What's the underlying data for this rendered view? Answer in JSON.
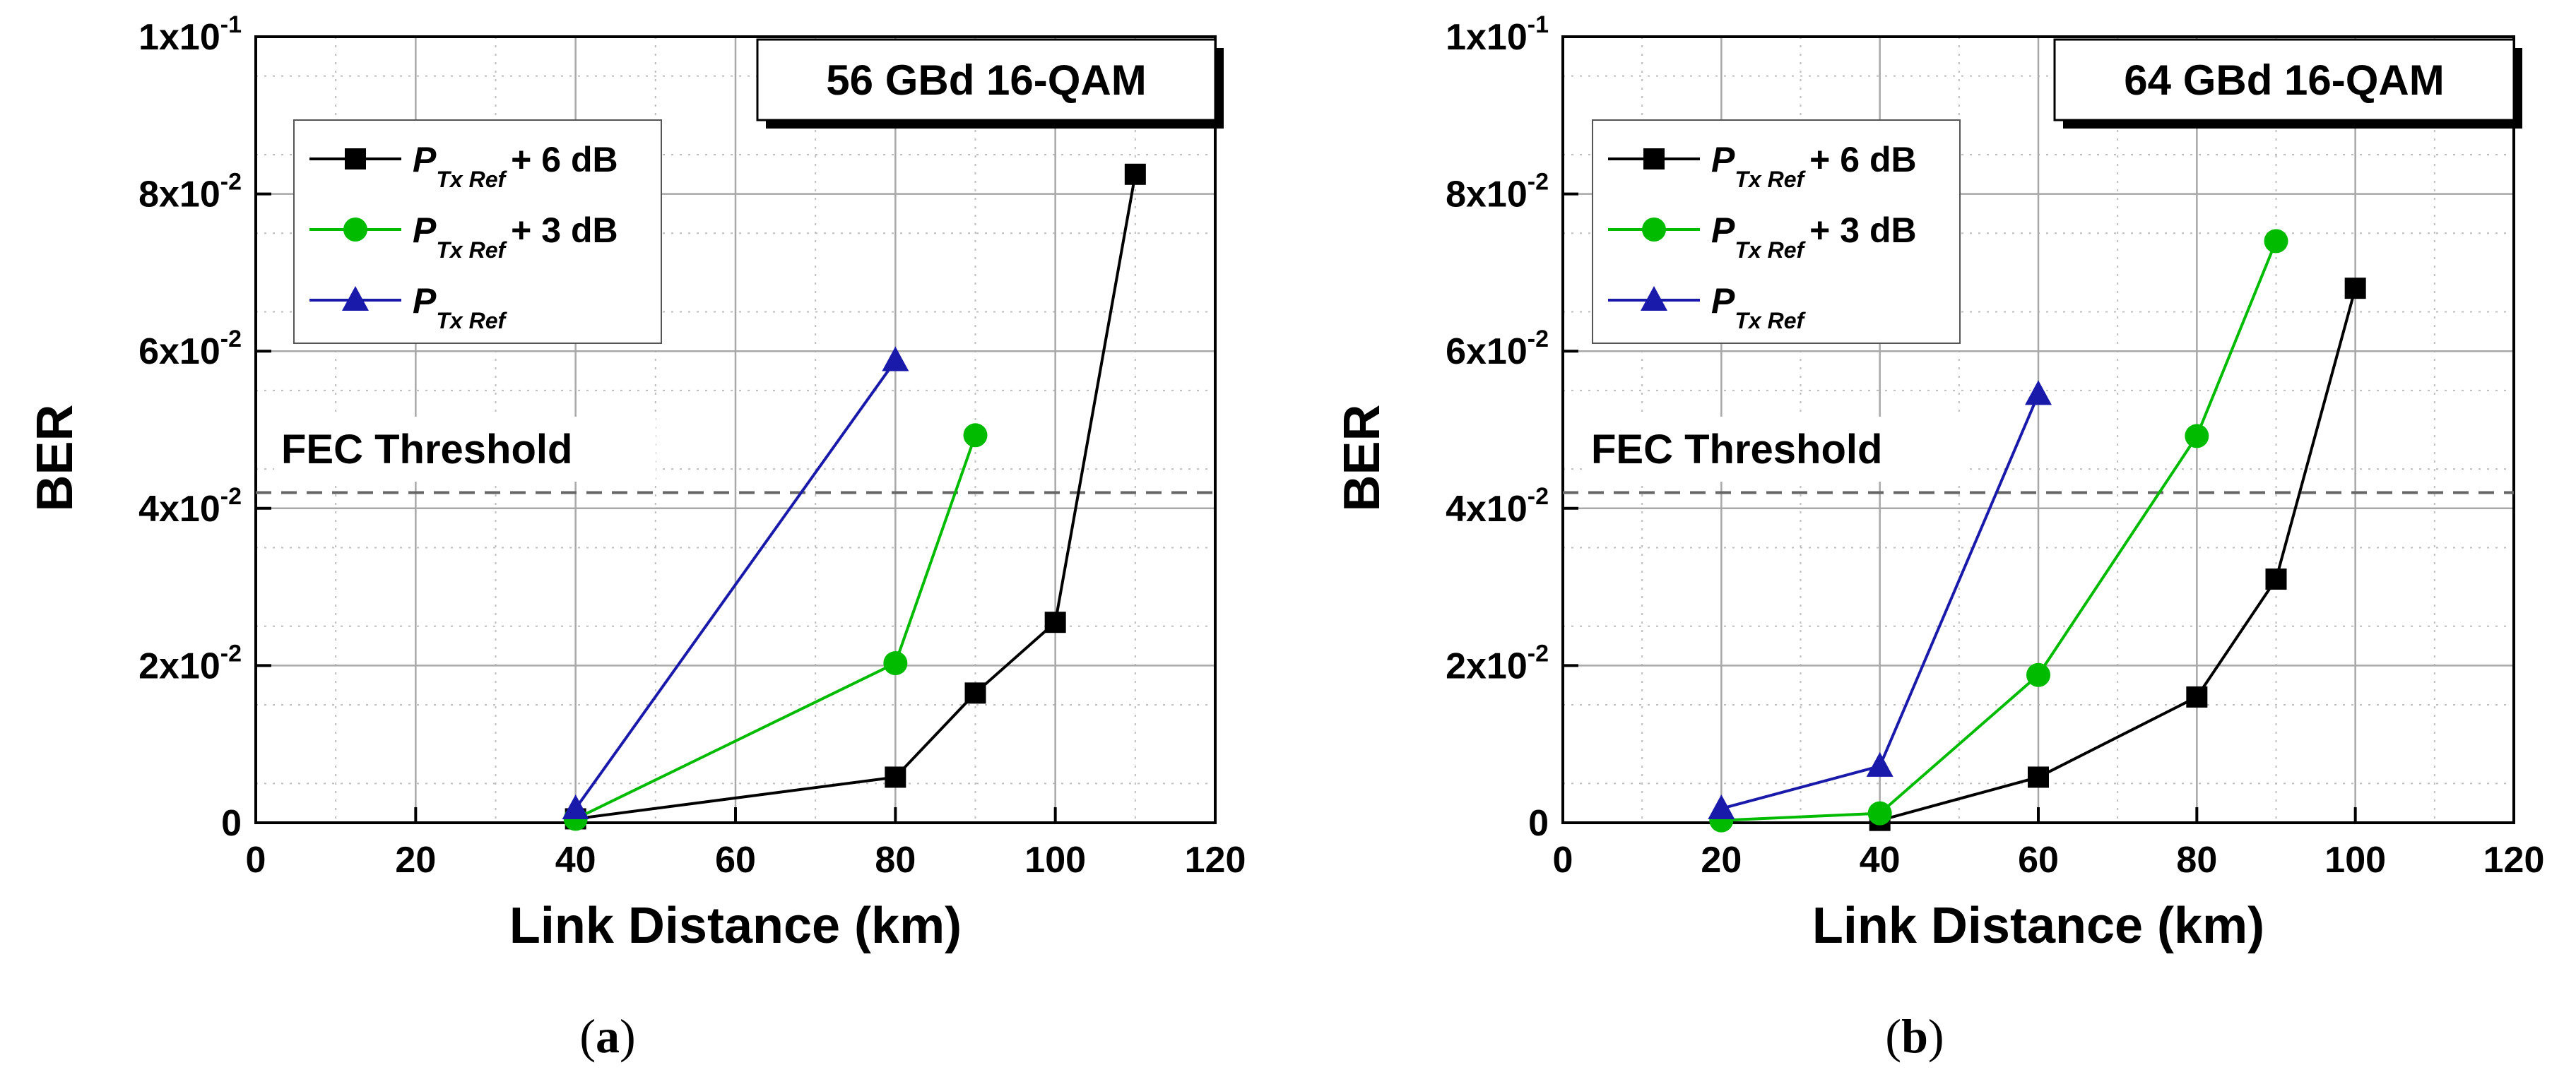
{
  "chart_data": [
    {
      "type": "line",
      "title": "56 GBd 16-QAM",
      "xlabel": "Link Distance (km)",
      "ylabel": "BER",
      "xlim": [
        0,
        120
      ],
      "ylim": [
        0,
        0.1
      ],
      "grid": true,
      "legend_position": "top-left",
      "x_ticks": [
        "0",
        "20",
        "40",
        "60",
        "80",
        "100",
        "120"
      ],
      "y_ticks": [
        {
          "base": "0",
          "exp": ""
        },
        {
          "base": "2x10",
          "exp": "-2"
        },
        {
          "base": "4x10",
          "exp": "-2"
        },
        {
          "base": "6x10",
          "exp": "-2"
        },
        {
          "base": "8x10",
          "exp": "-2"
        },
        {
          "base": "1x10",
          "exp": "-1"
        }
      ],
      "threshold": {
        "label": "FEC Threshold",
        "value": 0.042
      },
      "caption": {
        "open": "(",
        "letter": "a",
        "close": ")"
      },
      "series": [
        {
          "name": "P Tx Ref + 6 dB",
          "symbol": "P",
          "subscript": "Tx Ref",
          "suffix": "+ 6 dB",
          "color": "#000000",
          "marker": "square",
          "x": [
            40,
            80,
            90,
            100,
            110
          ],
          "y": [
            0.0005,
            0.0058,
            0.0165,
            0.0255,
            0.0825
          ]
        },
        {
          "name": "P Tx Ref + 3 dB",
          "symbol": "P",
          "subscript": "Tx Ref",
          "suffix": "+ 3 dB",
          "color": "#00bb00",
          "marker": "circle",
          "x": [
            40,
            80,
            90
          ],
          "y": [
            0.0005,
            0.0203,
            0.0493
          ]
        },
        {
          "name": "P Tx Ref",
          "symbol": "P",
          "subscript": "Tx Ref",
          "suffix": "",
          "color": "#1a1aaa",
          "marker": "triangle",
          "x": [
            40,
            80
          ],
          "y": [
            0.0018,
            0.0588
          ]
        }
      ]
    },
    {
      "type": "line",
      "title": "64 GBd 16-QAM",
      "xlabel": "Link Distance (km)",
      "ylabel": "BER",
      "xlim": [
        0,
        120
      ],
      "ylim": [
        0,
        0.1
      ],
      "grid": true,
      "legend_position": "top-left",
      "x_ticks": [
        "0",
        "20",
        "40",
        "60",
        "80",
        "100",
        "120"
      ],
      "y_ticks": [
        {
          "base": "0",
          "exp": ""
        },
        {
          "base": "2x10",
          "exp": "-2"
        },
        {
          "base": "4x10",
          "exp": "-2"
        },
        {
          "base": "6x10",
          "exp": "-2"
        },
        {
          "base": "8x10",
          "exp": "-2"
        },
        {
          "base": "1x10",
          "exp": "-1"
        }
      ],
      "threshold": {
        "label": "FEC Threshold",
        "value": 0.042
      },
      "caption": {
        "open": "(",
        "letter": "b",
        "close": ")"
      },
      "series": [
        {
          "name": "P Tx Ref + 6 dB",
          "symbol": "P",
          "subscript": "Tx Ref",
          "suffix": "+ 6 dB",
          "color": "#000000",
          "marker": "square",
          "x": [
            40,
            60,
            80,
            90,
            100
          ],
          "y": [
            0.0003,
            0.0058,
            0.016,
            0.031,
            0.068
          ]
        },
        {
          "name": "P Tx Ref + 3 dB",
          "symbol": "P",
          "subscript": "Tx Ref",
          "suffix": "+ 3 dB",
          "color": "#00bb00",
          "marker": "circle",
          "x": [
            20,
            40,
            60,
            80,
            90
          ],
          "y": [
            0.0003,
            0.0012,
            0.0188,
            0.0492,
            0.074
          ]
        },
        {
          "name": "P Tx Ref",
          "symbol": "P",
          "subscript": "Tx Ref",
          "suffix": "",
          "color": "#1a1aaa",
          "marker": "triangle",
          "x": [
            20,
            40,
            60
          ],
          "y": [
            0.0018,
            0.0072,
            0.0545
          ]
        }
      ]
    }
  ]
}
